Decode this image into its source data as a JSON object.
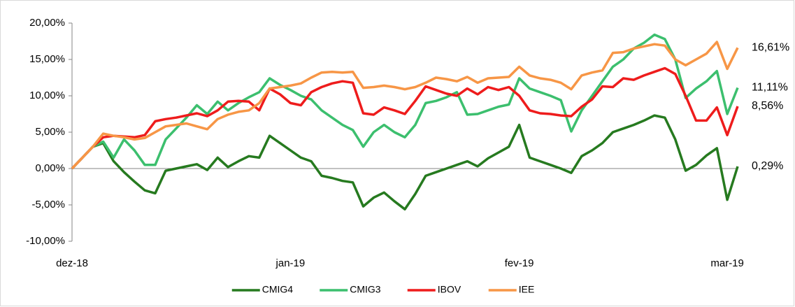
{
  "chart_data": {
    "type": "line",
    "categories": [
      "dez-18",
      null,
      null,
      null,
      null,
      null,
      null,
      null,
      null,
      null,
      null,
      null,
      null,
      null,
      null,
      null,
      null,
      null,
      null,
      null,
      null,
      "jan-19",
      null,
      null,
      null,
      null,
      null,
      null,
      null,
      null,
      null,
      null,
      null,
      null,
      null,
      null,
      null,
      null,
      null,
      null,
      null,
      null,
      null,
      "fev-19",
      null,
      null,
      null,
      null,
      null,
      null,
      null,
      null,
      null,
      null,
      null,
      null,
      null,
      null,
      null,
      null,
      null,
      null,
      null,
      "mar-19",
      null
    ],
    "series": [
      {
        "name": "CMIG4",
        "color": "#267a1f",
        "values": [
          0,
          1.5,
          3.0,
          3.5,
          1.0,
          -0.5,
          -1.8,
          -3.0,
          -3.4,
          -0.3,
          0.0,
          0.3,
          0.6,
          -0.2,
          1.5,
          0.2,
          1.0,
          1.7,
          1.5,
          4.5,
          3.5,
          2.5,
          1.5,
          1.0,
          -1.0,
          -1.3,
          -1.7,
          -1.9,
          -5.2,
          -4.0,
          -3.3,
          -4.5,
          -5.6,
          -3.5,
          -1.0,
          -0.5,
          0.0,
          0.5,
          1.0,
          0.3,
          1.4,
          2.2,
          3.0,
          6.0,
          1.5,
          1.0,
          0.5,
          0.0,
          -0.6,
          1.7,
          2.5,
          3.5,
          5.0,
          5.5,
          6.0,
          6.6,
          7.3,
          7.0,
          4.0,
          -0.3,
          0.5,
          1.8,
          2.8,
          -4.3,
          0.29
        ],
        "value_labels": [
          null,
          null,
          null,
          null,
          null,
          null,
          null,
          null,
          null,
          null,
          null,
          null,
          null,
          null,
          null,
          null,
          null,
          null,
          null,
          null,
          null,
          null,
          null,
          null,
          null,
          null,
          null,
          null,
          null,
          null,
          null,
          null,
          null,
          null,
          null,
          null,
          null,
          null,
          null,
          null,
          null,
          null,
          null,
          null,
          null,
          null,
          null,
          null,
          null,
          null,
          null,
          null,
          null,
          null,
          null,
          null,
          null,
          null,
          null,
          null,
          null,
          null,
          null,
          null,
          "0,29%"
        ]
      },
      {
        "name": "CMIG3",
        "color": "#3cbf6e",
        "values": [
          0,
          1.5,
          3.0,
          3.7,
          1.5,
          4.0,
          2.5,
          0.5,
          0.5,
          4.0,
          5.5,
          7.0,
          8.7,
          7.5,
          9.2,
          8.0,
          9.0,
          9.8,
          10.5,
          12.4,
          11.5,
          10.8,
          10.0,
          9.5,
          8.0,
          7.0,
          6.0,
          5.3,
          3.0,
          5.0,
          6.0,
          5.0,
          4.3,
          6.0,
          9.0,
          9.3,
          9.8,
          10.5,
          7.4,
          7.5,
          8.0,
          8.5,
          8.8,
          12.4,
          11.0,
          10.5,
          10.0,
          9.4,
          5.1,
          8.0,
          10.0,
          12.0,
          14.0,
          15.0,
          16.5,
          17.3,
          18.4,
          17.8,
          15.0,
          9.7,
          11.0,
          12.0,
          13.4,
          7.5,
          11.11
        ],
        "value_labels": [
          null,
          null,
          null,
          null,
          null,
          null,
          null,
          null,
          null,
          null,
          null,
          null,
          null,
          null,
          null,
          null,
          null,
          null,
          null,
          null,
          null,
          null,
          null,
          null,
          null,
          null,
          null,
          null,
          null,
          null,
          null,
          null,
          null,
          null,
          null,
          null,
          null,
          null,
          null,
          null,
          null,
          null,
          null,
          null,
          null,
          null,
          null,
          null,
          null,
          null,
          null,
          null,
          null,
          null,
          null,
          null,
          null,
          null,
          null,
          null,
          null,
          null,
          null,
          null,
          "11,11%"
        ]
      },
      {
        "name": "IBOV",
        "color": "#ee1c1c",
        "values": [
          0,
          1.5,
          3.0,
          4.3,
          4.5,
          4.4,
          4.3,
          4.6,
          6.5,
          6.8,
          7.0,
          7.3,
          7.6,
          7.2,
          8.0,
          9.2,
          9.3,
          9.2,
          8.0,
          11.0,
          10.2,
          9.0,
          8.7,
          10.5,
          11.2,
          11.7,
          12.0,
          11.8,
          7.6,
          7.4,
          8.4,
          8.0,
          7.5,
          9.3,
          11.3,
          10.8,
          10.3,
          10.0,
          11.0,
          10.2,
          11.2,
          10.8,
          11.2,
          10.0,
          8.0,
          7.6,
          7.5,
          7.3,
          7.2,
          8.5,
          9.5,
          11.3,
          11.2,
          12.4,
          12.2,
          12.8,
          13.3,
          13.8,
          13.0,
          10.0,
          6.6,
          6.6,
          8.4,
          4.6,
          8.56
        ],
        "value_labels": [
          null,
          null,
          null,
          null,
          null,
          null,
          null,
          null,
          null,
          null,
          null,
          null,
          null,
          null,
          null,
          null,
          null,
          null,
          null,
          null,
          null,
          null,
          null,
          null,
          null,
          null,
          null,
          null,
          null,
          null,
          null,
          null,
          null,
          null,
          null,
          null,
          null,
          null,
          null,
          null,
          null,
          null,
          null,
          null,
          null,
          null,
          null,
          null,
          null,
          null,
          null,
          null,
          null,
          null,
          null,
          null,
          null,
          null,
          null,
          null,
          null,
          null,
          null,
          null,
          "8,56%"
        ]
      },
      {
        "name": "IEE",
        "color": "#f79646",
        "values": [
          0,
          1.5,
          3.0,
          4.8,
          4.5,
          4.3,
          4.0,
          4.2,
          5.0,
          5.8,
          6.0,
          6.2,
          5.8,
          5.4,
          6.8,
          7.4,
          7.8,
          8.0,
          9.0,
          11.0,
          11.2,
          11.4,
          11.7,
          12.5,
          13.2,
          13.3,
          13.2,
          13.3,
          11.1,
          11.2,
          11.4,
          11.2,
          10.9,
          11.2,
          11.8,
          12.5,
          12.3,
          12.0,
          12.6,
          11.8,
          12.4,
          12.5,
          12.6,
          14.0,
          12.8,
          12.4,
          12.2,
          11.8,
          10.9,
          12.8,
          13.2,
          13.5,
          15.9,
          16.0,
          16.5,
          16.8,
          17.1,
          16.9,
          15.0,
          14.2,
          15.0,
          15.8,
          17.4,
          13.7,
          16.61
        ],
        "value_labels": [
          null,
          null,
          null,
          null,
          null,
          null,
          null,
          null,
          null,
          null,
          null,
          null,
          null,
          null,
          null,
          null,
          null,
          null,
          null,
          null,
          null,
          null,
          null,
          null,
          null,
          null,
          null,
          null,
          null,
          null,
          null,
          null,
          null,
          null,
          null,
          null,
          null,
          null,
          null,
          null,
          null,
          null,
          null,
          null,
          null,
          null,
          null,
          null,
          null,
          null,
          null,
          null,
          null,
          null,
          null,
          null,
          null,
          null,
          null,
          null,
          null,
          null,
          null,
          null,
          "16,61%"
        ]
      }
    ],
    "ylim": [
      -10,
      20
    ],
    "yticks": [
      {
        "value": -10,
        "label": "-10,00%"
      },
      {
        "value": -5,
        "label": "-5,00%"
      },
      {
        "value": 0,
        "label": "0,00%"
      },
      {
        "value": 5,
        "label": "5,00%"
      },
      {
        "value": 10,
        "label": "10,00%"
      },
      {
        "value": 15,
        "label": "15,00%"
      },
      {
        "value": 20,
        "label": "20,00%"
      }
    ],
    "legend": "bottom"
  }
}
